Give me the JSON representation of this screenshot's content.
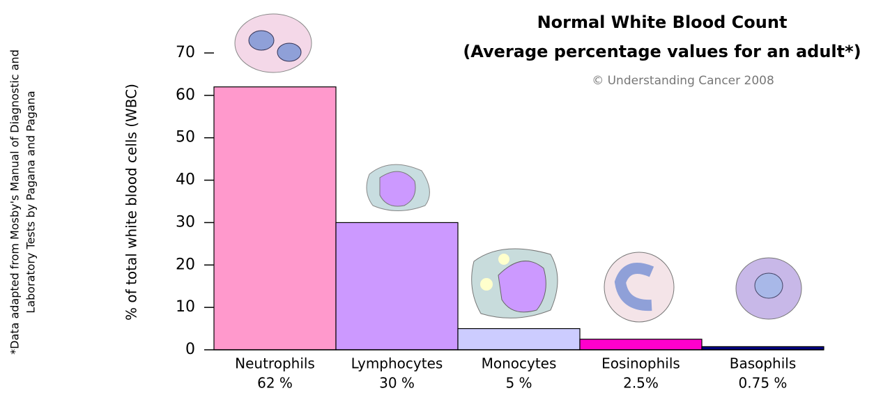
{
  "chart_data": {
    "type": "bar",
    "title": [
      "Normal White Blood Count",
      "(Average percentage values for an adult*)"
    ],
    "subtitle": "© Understanding Cancer 2008",
    "y_label": "% of total white blood cells (WBC)",
    "note": [
      "*Data adapted from Mosby's Manual of Diagnostic and",
      "Laboratory Tests by Pagana and Pagana"
    ],
    "categories": [
      "Neutrophils",
      "Lymphocytes",
      "Monocytes",
      "Eosinophils",
      "Basophils"
    ],
    "values": [
      62,
      30,
      5,
      2.5,
      0.75
    ],
    "value_labels": [
      "62 %",
      "30 %",
      "5 %",
      "2.5%",
      "0.75 %"
    ],
    "colors": [
      "#ff99cc",
      "#cc99ff",
      "#ccccff",
      "#ff00cc",
      "#000080"
    ],
    "ylim": [
      0,
      70
    ],
    "yticks": [
      0,
      10,
      20,
      30,
      40,
      50,
      60,
      70
    ]
  }
}
